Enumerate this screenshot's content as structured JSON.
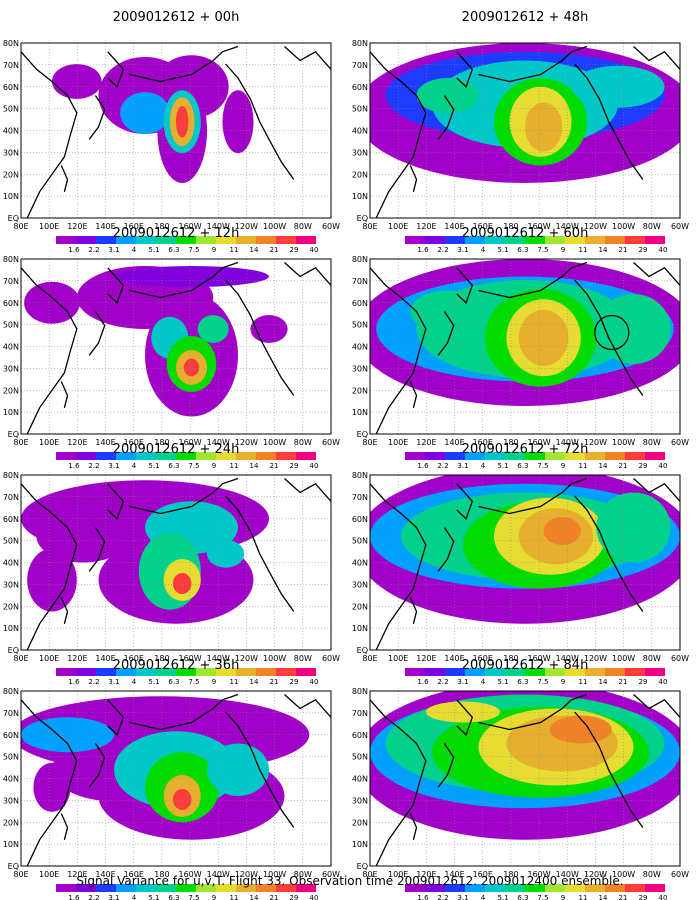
{
  "footer": "Signal Variance for u,v,T. Flight 33. Observation time 2009012612. 2009012400 ensemble.",
  "lat_labels": [
    "80N",
    "70N",
    "60N",
    "50N",
    "40N",
    "30N",
    "20N",
    "10N",
    "EQ"
  ],
  "lon_labels": [
    "80E",
    "100E",
    "120E",
    "140E",
    "160E",
    "180",
    "160W",
    "140W",
    "120W",
    "100W",
    "80W",
    "60W"
  ],
  "colorbar": {
    "labels": [
      "1.6",
      "2.2",
      "3.1",
      "4",
      "5.1",
      "6.3",
      "7.5",
      "9",
      "11",
      "14",
      "21",
      "29",
      "40"
    ],
    "colors": [
      "#a000c8",
      "#8200dc",
      "#1e3cff",
      "#00a0ff",
      "#00c8c8",
      "#00d28c",
      "#00dc00",
      "#a0e632",
      "#e6dc32",
      "#e6af2d",
      "#f08228",
      "#fa3c3c",
      "#f00082"
    ]
  },
  "panels": [
    {
      "title": "2009012612 + 00h"
    },
    {
      "title": "2009012612 + 48h"
    },
    {
      "title": "2009012612 + 12h"
    },
    {
      "title": "2009012612 + 60h"
    },
    {
      "title": "2009012612 + 24h"
    },
    {
      "title": "2009012612 + 72h"
    },
    {
      "title": "2009012612 + 36h"
    },
    {
      "title": "2009012612 + 84h"
    }
  ]
}
